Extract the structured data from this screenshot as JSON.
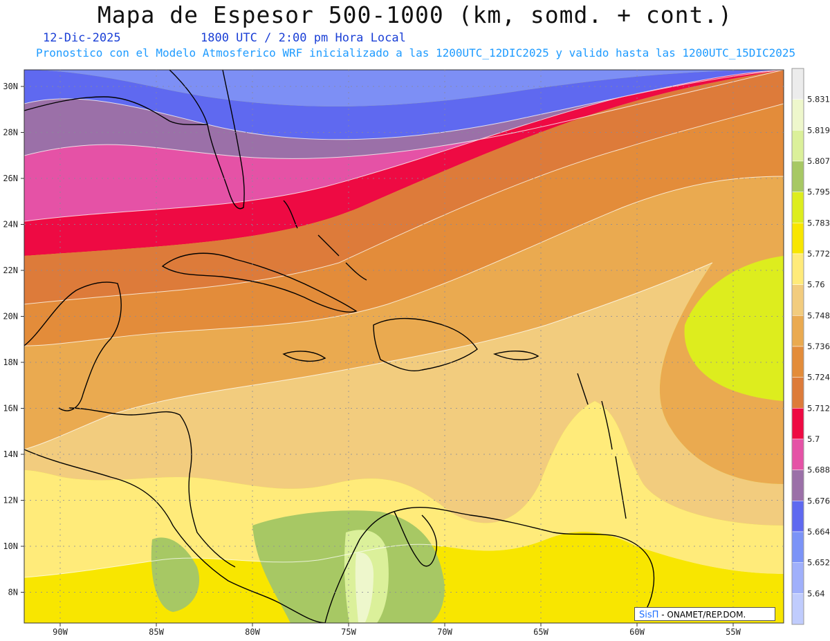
{
  "header": {
    "title": "Mapa de Espesor 500-1000 (km, somd. + cont.)",
    "date": "12-Dic-2025",
    "time": "1800 UTC / 2:00 pm Hora Local",
    "subtitle": "Pronostico con el Modelo Atmosferico WRF inicializado a las 1200UTC_12DIC2025 y valido hasta las  1200UTC_15DIC2025"
  },
  "axes": {
    "lon_labels": [
      "90W",
      "85W",
      "80W",
      "75W",
      "70W",
      "65W",
      "60W",
      "55W"
    ],
    "lat_labels": [
      "30N",
      "28N",
      "26N",
      "24N",
      "22N",
      "20N",
      "18N",
      "16N",
      "14N",
      "12N",
      "10N",
      "8N"
    ]
  },
  "colorbar": {
    "levels": [
      "5.831",
      "5.819",
      "5.807",
      "5.795",
      "5.783",
      "5.772",
      "5.76",
      "5.748",
      "5.736",
      "5.724",
      "5.712",
      "5.7",
      "5.688",
      "5.676",
      "5.664",
      "5.652",
      "5.64"
    ],
    "colors": [
      "#ececec",
      "#eef7cc",
      "#dbf09a",
      "#a7c864",
      "#dded1e",
      "#f8e600",
      "#ffeb7a",
      "#f2cc7e",
      "#eaaa50",
      "#e38c3a",
      "#dd7b3a",
      "#ee0a43",
      "#e552a6",
      "#9b70a8",
      "#5f69f0",
      "#7b93f7",
      "#a0b0fb",
      "#c0ccfd"
    ]
  },
  "credit": {
    "logo": "SisΠ",
    "text": "- ONAMET/REP.DOM."
  }
}
